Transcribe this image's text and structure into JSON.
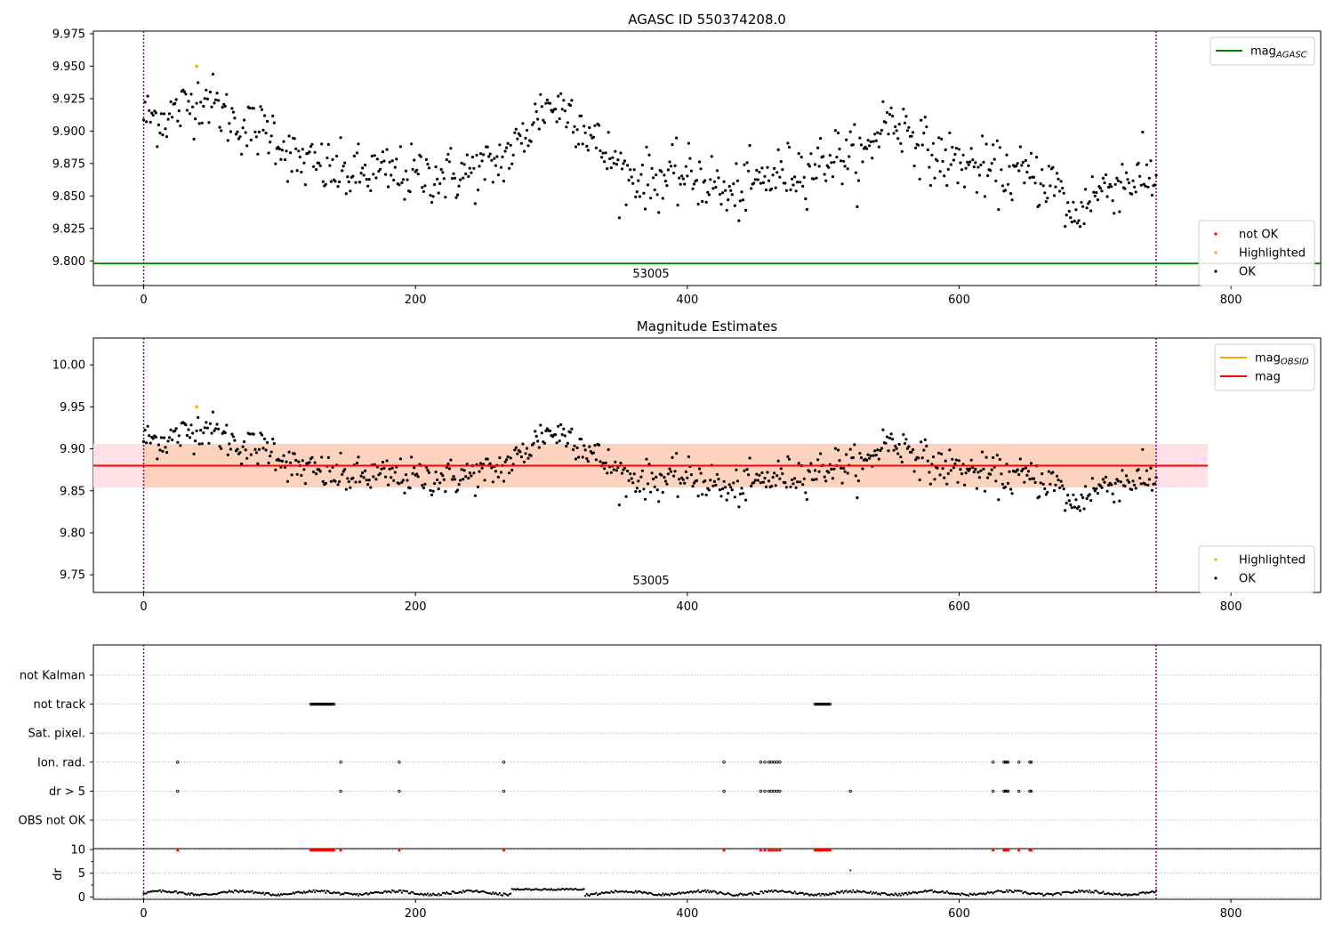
{
  "colors": {
    "ok": "#000000",
    "not_ok": "#ff0000",
    "highlighted": "#ffa500",
    "mag_agasc_line": "#008000",
    "mag_line": "#ff0000",
    "mag_obsid_line": "#ffa500",
    "band_outer": "#ffe0e6",
    "band_inner": "#fdd3bf",
    "obsid_marker": "#800080",
    "grid": "#b0b0b0"
  },
  "chart_data": [
    {
      "type": "scatter",
      "title": "AGASC ID 550374208.0",
      "xlim": [
        -37,
        866
      ],
      "ylim": [
        9.781,
        9.977
      ],
      "xticks": [
        0,
        200,
        400,
        600,
        800
      ],
      "yticks": [
        9.8,
        9.825,
        9.85,
        9.875,
        9.9,
        9.925,
        9.95,
        9.975
      ],
      "ytick_labels": [
        "9.800",
        "9.825",
        "9.850",
        "9.875",
        "9.900",
        "9.925",
        "9.950",
        "9.975"
      ],
      "mag_agasc": 9.798,
      "obsid_label": "53005",
      "obsid_label_x": 372,
      "obsid_lines_x": [
        0,
        745
      ],
      "highlighted_points": [
        [
          39,
          9.95
        ]
      ],
      "legend_top": [
        {
          "label": "mag",
          "sub": "AGASC",
          "kind": "line",
          "color": "mag_agasc_line"
        }
      ],
      "legend_bottom": [
        {
          "label": "not OK",
          "kind": "dot",
          "color": "not_ok"
        },
        {
          "label": "Highlighted",
          "kind": "dot",
          "color": "highlighted"
        },
        {
          "label": "OK",
          "kind": "dot",
          "color": "ok"
        }
      ],
      "legend_position": "upper right / lower right"
    },
    {
      "type": "scatter",
      "title": "Magnitude Estimates",
      "xlim": [
        -37,
        866
      ],
      "ylim": [
        9.729,
        10.032
      ],
      "xticks": [
        0,
        200,
        400,
        600,
        800
      ],
      "yticks": [
        9.75,
        9.8,
        9.85,
        9.9,
        9.95,
        10.0
      ],
      "ytick_labels": [
        "9.75",
        "9.80",
        "9.85",
        "9.90",
        "9.95",
        "10.00"
      ],
      "mag": 9.88,
      "mag_band": [
        9.854,
        9.906
      ],
      "mag_band_x": [
        -37,
        783
      ],
      "mag_obsid_band": [
        9.854,
        9.906
      ],
      "mag_obsid_band_x": [
        0,
        745
      ],
      "obsid_label": "53005",
      "obsid_label_x": 372,
      "obsid_lines_x": [
        0,
        745
      ],
      "highlighted_points": [
        [
          39,
          9.95
        ]
      ],
      "legend_top": [
        {
          "label": "mag",
          "sub": "OBSID",
          "kind": "line",
          "color": "mag_obsid_line"
        },
        {
          "label": "mag",
          "sub": "",
          "kind": "line",
          "color": "mag_line"
        }
      ],
      "legend_bottom": [
        {
          "label": "Highlighted",
          "kind": "dot",
          "color": "highlighted"
        },
        {
          "label": "OK",
          "kind": "dot",
          "color": "ok"
        }
      ],
      "legend_position": "upper right / lower right"
    },
    {
      "type": "scatter",
      "title": "",
      "xlim": [
        -37,
        866
      ],
      "xticks": [
        0,
        200,
        400,
        600,
        800
      ],
      "flag_categories": [
        "not Kalman",
        "not track",
        "Sat. pixel.",
        "Ion. rad.",
        "dr > 5",
        "OBS not OK"
      ],
      "flag_points": {
        "not Kalman": [],
        "not track": [
          123,
          124,
          125,
          126,
          127,
          128,
          129,
          130,
          131,
          132,
          133,
          134,
          135,
          136,
          137,
          138,
          139,
          140,
          494,
          495,
          496,
          497,
          498,
          499,
          500,
          501,
          502,
          503,
          504,
          505
        ],
        "Sat. pixel.": [],
        "Ion. rad.": [
          25,
          145,
          188,
          265,
          427,
          454,
          457,
          460,
          462,
          464,
          466,
          468,
          625,
          633,
          634,
          635,
          636,
          644,
          652,
          653
        ],
        "dr > 5": [
          25,
          145,
          188,
          265,
          427,
          454,
          457,
          460,
          462,
          464,
          466,
          468,
          520,
          625,
          633,
          634,
          635,
          636,
          644,
          652,
          653
        ],
        "OBS not OK": []
      },
      "dr_ylim": [
        -0.5,
        10.2
      ],
      "dr_yticks": [
        0,
        5,
        10
      ],
      "dr_ylabel": "dr",
      "dr_outliers": [
        [
          520,
          5.6
        ]
      ],
      "dr_capped_x": [
        25,
        123,
        124,
        125,
        126,
        127,
        128,
        129,
        130,
        131,
        132,
        133,
        134,
        135,
        136,
        137,
        138,
        139,
        140,
        145,
        188,
        265,
        427,
        454,
        457,
        460,
        462,
        464,
        466,
        468,
        494,
        495,
        496,
        497,
        498,
        499,
        500,
        501,
        502,
        503,
        504,
        505,
        625,
        633,
        634,
        635,
        636,
        644,
        652,
        653
      ],
      "dr_cap_value": 10,
      "obsid_lines_x": [
        0,
        745
      ]
    }
  ]
}
